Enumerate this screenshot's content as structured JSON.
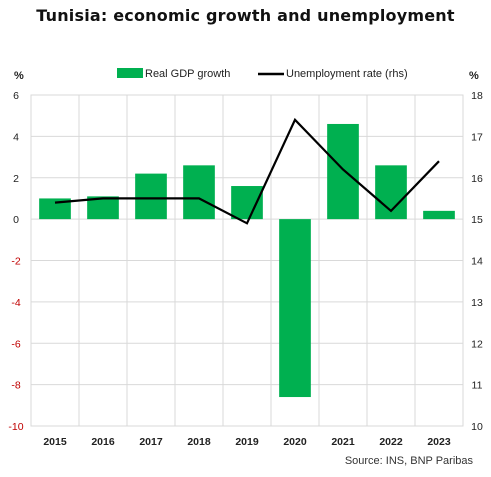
{
  "title": "Tunisia: economic growth and unemployment",
  "source": "Source: INS, BNP Paribas",
  "left_unit": "%",
  "right_unit": "%",
  "colors": {
    "bar": "#00b050",
    "line": "#000000",
    "grid": "#d9d9d9",
    "axis_text": "#222222",
    "neg_text": "#c00000"
  },
  "chart_data": {
    "type": "bar",
    "title": "Tunisia: economic growth and unemployment",
    "categories": [
      "2015",
      "2016",
      "2017",
      "2018",
      "2019",
      "2020",
      "2021",
      "2022",
      "2023"
    ],
    "series": [
      {
        "name": "Real GDP growth",
        "type": "bar",
        "axis": "left",
        "values": [
          1.0,
          1.1,
          2.2,
          2.6,
          1.6,
          -8.6,
          4.6,
          2.6,
          0.4
        ]
      },
      {
        "name": "Unemployment rate (rhs)",
        "type": "line",
        "axis": "right",
        "values": [
          15.4,
          15.5,
          15.5,
          15.5,
          14.9,
          17.4,
          16.2,
          15.2,
          16.4
        ]
      }
    ],
    "ylim": [
      -10,
      6
    ],
    "yticks": [
      "6",
      "4",
      "2",
      "0",
      "-2",
      "-4",
      "-6",
      "-8",
      "-10"
    ],
    "y2lim": [
      10,
      18
    ],
    "y2ticks": [
      "18",
      "17",
      "16",
      "15",
      "14",
      "13",
      "12",
      "11",
      "10"
    ],
    "grid": true,
    "legend": "top"
  }
}
